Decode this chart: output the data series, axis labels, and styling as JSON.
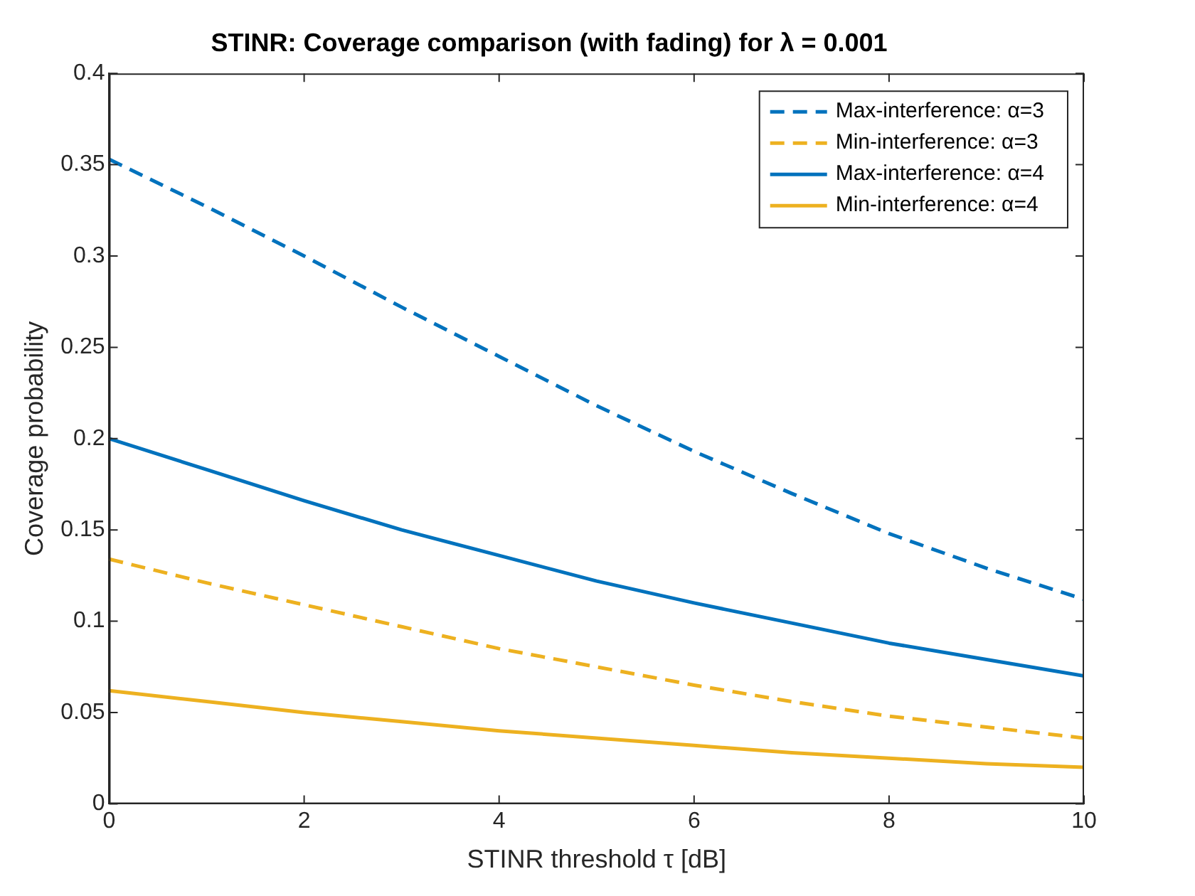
{
  "chart_data": {
    "type": "line",
    "title": "STINR: Coverage comparison (with fading) for λ = 0.001",
    "xlabel": "STINR threshold τ [dB]",
    "ylabel": "Coverage probability",
    "x": [
      0,
      1,
      2,
      3,
      4,
      5,
      6,
      7,
      8,
      9,
      10
    ],
    "series": [
      {
        "name": "Max-interference: α=3",
        "color": "#0072bd",
        "line_style": "dashed",
        "values": [
          0.353,
          0.327,
          0.3,
          0.272,
          0.245,
          0.218,
          0.193,
          0.17,
          0.148,
          0.129,
          0.112
        ]
      },
      {
        "name": "Min-interference: α=3",
        "color": "#edb120",
        "line_style": "dashed",
        "values": [
          0.134,
          0.121,
          0.109,
          0.097,
          0.085,
          0.075,
          0.065,
          0.056,
          0.048,
          0.042,
          0.036
        ]
      },
      {
        "name": "Max-interference: α=4",
        "color": "#0072bd",
        "line_style": "solid",
        "values": [
          0.2,
          0.183,
          0.166,
          0.15,
          0.136,
          0.122,
          0.11,
          0.099,
          0.088,
          0.079,
          0.07
        ]
      },
      {
        "name": "Min-interference: α=4",
        "color": "#edb120",
        "line_style": "solid",
        "values": [
          0.062,
          0.056,
          0.05,
          0.045,
          0.04,
          0.036,
          0.032,
          0.028,
          0.025,
          0.022,
          0.02
        ]
      }
    ],
    "xlim": [
      0,
      10
    ],
    "xticks": [
      0,
      2,
      4,
      6,
      8,
      10
    ],
    "ylim": [
      0,
      0.4
    ],
    "yticks": [
      0,
      0.05,
      0.1,
      0.15,
      0.2,
      0.25,
      0.3,
      0.35,
      0.4
    ],
    "grid": false,
    "legend": "top right",
    "marker": "none"
  }
}
